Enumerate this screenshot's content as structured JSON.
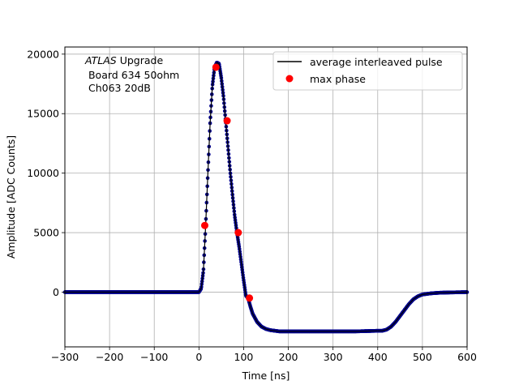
{
  "chart_data": {
    "type": "scatter",
    "title": "",
    "xlabel": "Time [ns]",
    "ylabel": "Amplitude [ADC Counts]",
    "xlim": [
      -300,
      600
    ],
    "ylim": [
      -4600,
      20600
    ],
    "xticks": [
      -300,
      -200,
      -100,
      0,
      100,
      200,
      300,
      400,
      500,
      600
    ],
    "yticks": [
      0,
      5000,
      10000,
      15000,
      20000
    ],
    "grid": true,
    "legend_position": "upper-right",
    "annotation": {
      "line1_italic": "ATLAS",
      "line1_rest": " Upgrade",
      "line2": " Board 634 50ohm",
      "line3": " Ch063 20dB"
    },
    "series": [
      {
        "name": "average interleaved pulse",
        "color": "#000000",
        "marker_color": "#00008b",
        "style": "line-with-dense-markers",
        "x": [
          -300,
          -100,
          0,
          5,
          10,
          15,
          20,
          25,
          30,
          35,
          40,
          45,
          50,
          55,
          60,
          65,
          70,
          75,
          80,
          85,
          90,
          95,
          100,
          105,
          110,
          115,
          120,
          130,
          140,
          150,
          160,
          170,
          180,
          200,
          250,
          300,
          350,
          400,
          410,
          420,
          430,
          440,
          450,
          460,
          470,
          480,
          490,
          500,
          520,
          540,
          560,
          600
        ],
        "y": [
          0,
          0,
          0,
          300,
          1800,
          5600,
          10000,
          14200,
          17300,
          18900,
          19300,
          19200,
          18000,
          16400,
          14300,
          12200,
          10100,
          8200,
          6400,
          5000,
          3800,
          2400,
          1000,
          -300,
          -500,
          -1200,
          -1800,
          -2500,
          -2900,
          -3100,
          -3200,
          -3250,
          -3300,
          -3300,
          -3300,
          -3300,
          -3300,
          -3250,
          -3250,
          -3150,
          -2900,
          -2500,
          -2000,
          -1500,
          -1000,
          -600,
          -350,
          -200,
          -100,
          -50,
          -30,
          0
        ]
      },
      {
        "name": "max phase",
        "color": "#ff0000",
        "style": "markers",
        "x": [
          13,
          38,
          63,
          88,
          113
        ],
        "y": [
          5600,
          18900,
          14400,
          5000,
          -500
        ]
      }
    ]
  }
}
